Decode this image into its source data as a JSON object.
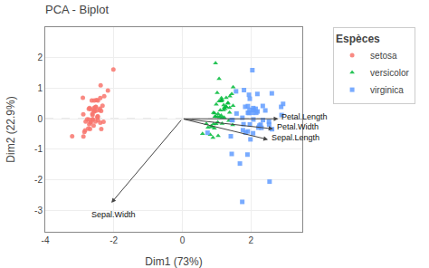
{
  "chart_data": {
    "type": "scatter",
    "title": "PCA - Biplot",
    "xlabel": "Dim1 (73%)",
    "ylabel": "Dim2 (22.9%)",
    "xlim": [
      -4,
      3.5
    ],
    "ylim": [
      -3.7,
      3.0
    ],
    "xticks": [
      -4,
      -2,
      0,
      2
    ],
    "yticks": [
      -3,
      -2,
      -1,
      0,
      1,
      2
    ],
    "grid": true,
    "legend": "right",
    "legend_title": "Espèces",
    "series": [
      {
        "name": "setosa",
        "color": "#F8766D",
        "marker": "circle",
        "values": [
          [
            -2.684,
            0.319
          ],
          [
            -2.715,
            -0.177
          ],
          [
            -2.89,
            0.145
          ],
          [
            -2.746,
            -0.318
          ],
          [
            -2.729,
            0.326
          ],
          [
            -2.28,
            0.741
          ],
          [
            -2.82,
            -0.089
          ],
          [
            -2.626,
            0.163
          ],
          [
            -2.886,
            -0.578
          ],
          [
            -2.674,
            -0.114
          ],
          [
            -2.506,
            0.616
          ],
          [
            -2.612,
            -0.02
          ],
          [
            -2.694,
            -0.338
          ],
          [
            -2.859,
            -0.435
          ],
          [
            -2.012,
            1.614
          ],
          [
            -2.903,
            0.688
          ],
          [
            -2.394,
            0.68
          ],
          [
            -2.577,
            0.357
          ],
          [
            -2.172,
            0.928
          ],
          [
            -2.577,
            0.237
          ],
          [
            -2.329,
            0.429
          ],
          [
            -2.47,
            0.07
          ],
          [
            -2.563,
            0.263
          ],
          [
            -2.365,
            -0.334
          ],
          [
            -2.535,
            -0.093
          ],
          [
            -2.394,
            -0.131
          ],
          [
            -2.62,
            0.122
          ],
          [
            -2.521,
            0.393
          ],
          [
            -2.418,
            0.279
          ],
          [
            -2.622,
            -0.024
          ],
          [
            -2.589,
            -0.225
          ],
          [
            -2.405,
            0.33
          ],
          [
            -2.643,
            0.601
          ],
          [
            -2.384,
            1.098
          ],
          [
            -2.674,
            -0.114
          ],
          [
            -2.463,
            -0.045
          ],
          [
            -2.462,
            0.6
          ],
          [
            -2.727,
            -0.021
          ],
          [
            -2.837,
            -0.376
          ],
          [
            -2.518,
            0.265
          ],
          [
            -2.536,
            0.384
          ],
          [
            -3.215,
            -0.575
          ],
          [
            -2.3,
            -0.098
          ],
          [
            -2.369,
            0.257
          ],
          [
            -2.707,
            0.356
          ],
          [
            -2.479,
            0.032
          ],
          [
            -2.583,
            0.274
          ],
          [
            -2.775,
            -0.013
          ],
          [
            -2.571,
            0.596
          ],
          [
            -2.47,
            0.082
          ]
        ]
      },
      {
        "name": "versicolor",
        "color": "#00BA38",
        "marker": "triangle-up",
        "values": [
          [
            1.28,
            0.685
          ],
          [
            0.935,
            -0.315
          ],
          [
            1.16,
            -0.161
          ],
          [
            0.815,
            -0.52
          ],
          [
            1.133,
            0.113
          ],
          [
            1.381,
            0.362
          ],
          [
            0.589,
            -0.49
          ],
          [
            1.48,
            0.427
          ],
          [
            0.893,
            -0.616
          ],
          [
            1.221,
            0.04
          ],
          [
            1.017,
            0.853
          ],
          [
            0.948,
            0.072
          ],
          [
            1.046,
            -0.559
          ],
          [
            1.042,
            0.162
          ],
          [
            1.073,
            1.311
          ],
          [
            1.442,
            0.812
          ],
          [
            1.325,
            0.499
          ],
          [
            1.161,
            0.04
          ],
          [
            1.379,
            0.207
          ],
          [
            0.861,
            -0.268
          ],
          [
            1.357,
            -0.059
          ],
          [
            1.163,
            0.612
          ],
          [
            1.468,
            -0.201
          ],
          [
            1.033,
            -0.113
          ],
          [
            1.141,
            0.68
          ],
          [
            0.985,
            -0.166
          ],
          [
            1.203,
            0.29
          ],
          [
            0.99,
            0.476
          ],
          [
            1.218,
            0.358
          ],
          [
            0.978,
            0.069
          ],
          [
            0.84,
            -0.241
          ],
          [
            0.938,
            0.183
          ],
          [
            1.132,
            0.608
          ],
          [
            1.388,
            0.74
          ],
          [
            1.208,
            0.449
          ],
          [
            0.701,
            -0.165
          ],
          [
            1.071,
            0.576
          ],
          [
            1.291,
            0.387
          ],
          [
            0.907,
            0.2
          ],
          [
            1.333,
            0.521
          ],
          [
            1.483,
            1.034
          ],
          [
            1.039,
            0.062
          ],
          [
            0.969,
            1.822
          ],
          [
            0.75,
            -0.28
          ],
          [
            1.136,
            0.577
          ],
          [
            1.093,
            0.059
          ],
          [
            1.27,
            0.397
          ],
          [
            1.106,
            0.282
          ],
          [
            0.91,
            -0.171
          ],
          [
            1.245,
            0.327
          ]
        ]
      },
      {
        "name": "virginica",
        "color": "#619CFF",
        "marker": "square",
        "values": [
          [
            2.532,
            -0.19
          ],
          [
            1.414,
            -0.572
          ],
          [
            2.617,
            -0.341
          ],
          [
            1.97,
            -0.187
          ],
          [
            2.352,
            -0.041
          ],
          [
            2.94,
            0.488
          ],
          [
            0.735,
            -0.458
          ],
          [
            2.073,
            -0.022
          ],
          [
            1.988,
            -0.673
          ],
          [
            2.895,
            0.122
          ],
          [
            1.799,
            0.939
          ],
          [
            1.581,
            0.173
          ],
          [
            2.22,
            -0.289
          ],
          [
            1.441,
            -1.151
          ],
          [
            1.44,
            -0.038
          ],
          [
            2.611,
            0.833
          ],
          [
            1.96,
            0.295
          ],
          [
            1.914,
            0.2
          ],
          [
            1.768,
            -0.374
          ],
          [
            2.189,
            0.813
          ],
          [
            2.883,
            0.39
          ],
          [
            2.347,
            0.42
          ],
          [
            1.911,
            -0.415
          ],
          [
            1.844,
            -0.455
          ],
          [
            2.527,
            -0.096
          ],
          [
            2.421,
            0.273
          ],
          [
            1.94,
            0.188
          ],
          [
            1.968,
            0.655
          ],
          [
            1.785,
            -0.179
          ],
          [
            2.07,
            0.35
          ],
          [
            2.285,
            -0.192
          ],
          [
            2.156,
            0.195
          ],
          [
            1.835,
            0.392
          ],
          [
            1.567,
            0.899
          ],
          [
            1.465,
            -0.046
          ],
          [
            2.076,
            0.286
          ],
          [
            1.752,
            0.033
          ],
          [
            2.047,
            0.195
          ],
          [
            1.9,
            -1.172
          ],
          [
            2.139,
            0.327
          ],
          [
            2.043,
            1.592
          ],
          [
            1.944,
            0.786
          ],
          [
            1.68,
            -1.466
          ],
          [
            1.912,
            0.415
          ],
          [
            2.249,
            -0.224
          ],
          [
            2.064,
            -0.474
          ],
          [
            2.193,
            0.239
          ],
          [
            2.309,
            -0.297
          ],
          [
            2.545,
            -2.058
          ],
          [
            1.748,
            -2.72
          ]
        ]
      }
    ],
    "arrows": [
      {
        "dx": 2.8,
        "dy": 0.0,
        "label": "Petal.Length",
        "label_x": 2.85,
        "label_y": 0.07
      },
      {
        "dx": 2.65,
        "dy": -0.33,
        "label": "Petal.Width",
        "label_x": 2.7,
        "label_y": -0.26
      },
      {
        "dx": 2.5,
        "dy": -0.68,
        "label": "Sepal.Length",
        "label_x": 2.55,
        "label_y": -0.61
      },
      {
        "dx": -2.07,
        "dy": -2.75,
        "label": "Sepal.Width",
        "label_x": -2.7,
        "label_y": -3.15
      }
    ]
  }
}
